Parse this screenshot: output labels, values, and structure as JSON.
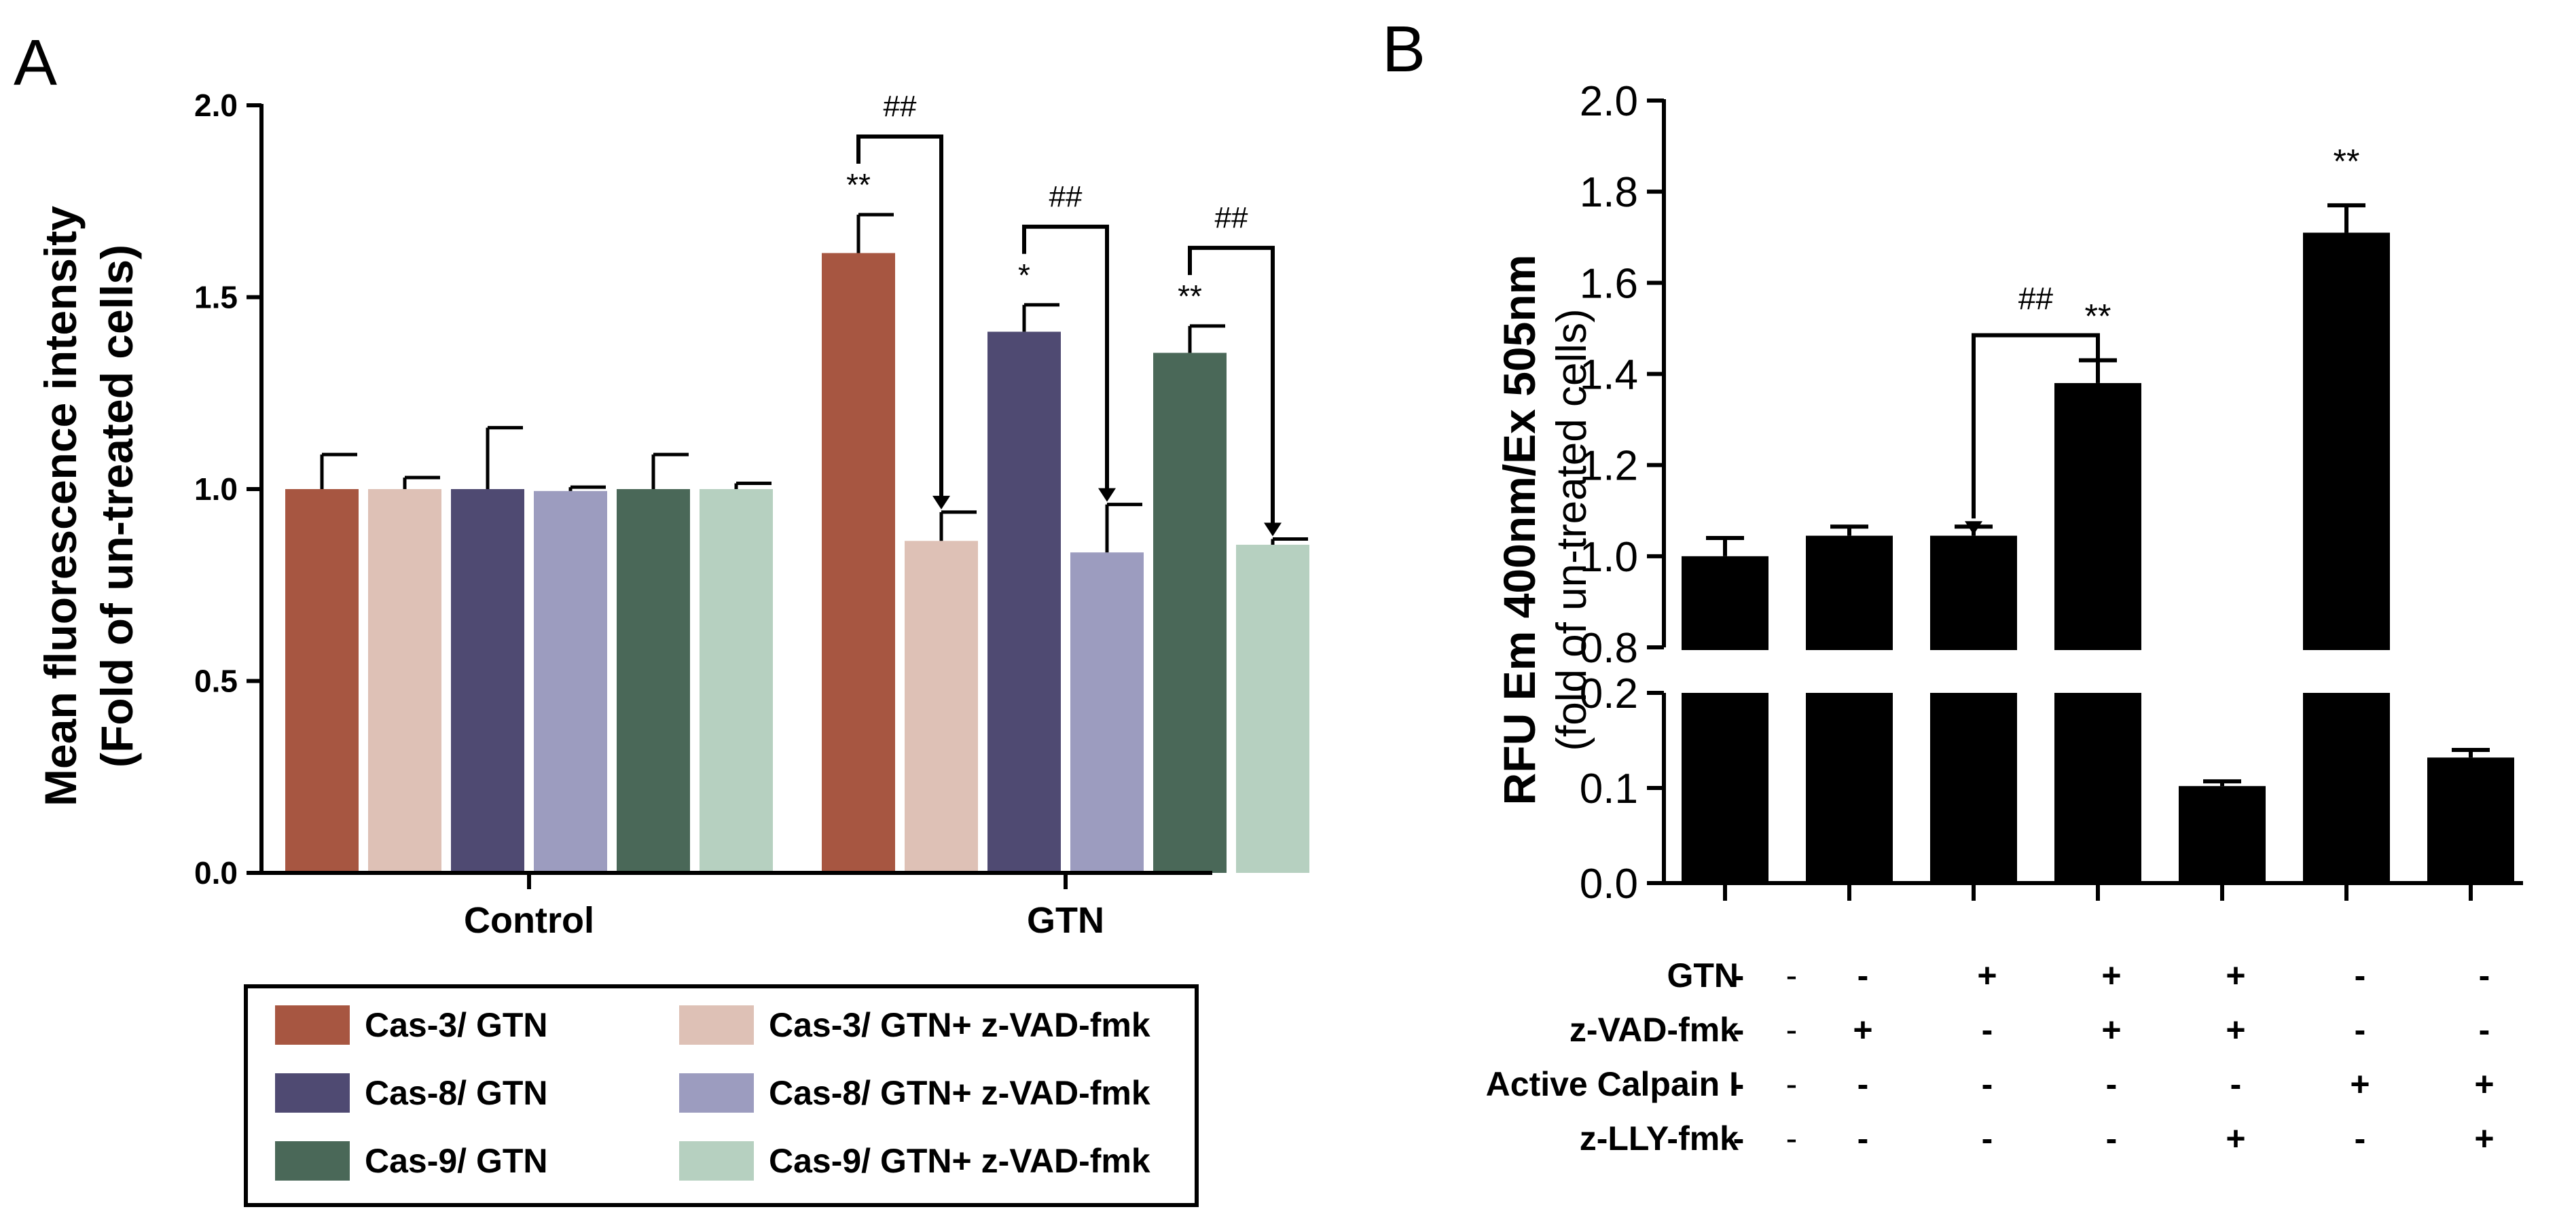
{
  "chart_data": [
    {
      "panel_label": "A",
      "type": "bar",
      "ylabel_line1": "Mean fluorescence intensity",
      "ylabel_line2": "(Fold of un-treated cells)",
      "ylim": [
        0,
        2.0
      ],
      "yticks": [
        0.0,
        0.5,
        1.0,
        1.5,
        2.0
      ],
      "ytick_labels": [
        "0.0",
        "0.5",
        "1.0",
        "1.5",
        "2.0"
      ],
      "groups": [
        "Control",
        "GTN"
      ],
      "series": [
        {
          "name": "Cas-3/ GTN",
          "color": "#a75641",
          "values": [
            1.0,
            1.615
          ],
          "errors": [
            0.09,
            0.1
          ]
        },
        {
          "name": "Cas-3/ GTN+ z-VAD-fmk",
          "color": "#dec1b6",
          "values": [
            1.0,
            0.865
          ],
          "errors": [
            0.03,
            0.075
          ]
        },
        {
          "name": "Cas-8/ GTN",
          "color": "#4f4a72",
          "values": [
            1.0,
            1.41
          ],
          "errors": [
            0.16,
            0.07
          ]
        },
        {
          "name": "Cas-8/ GTN+ z-VAD-fmk",
          "color": "#9c9cbf",
          "values": [
            0.995,
            0.835
          ],
          "errors": [
            0.01,
            0.125
          ]
        },
        {
          "name": "Cas-9/ GTN",
          "color": "#4a6858",
          "values": [
            1.0,
            1.355
          ],
          "errors": [
            0.09,
            0.07
          ]
        },
        {
          "name": "Cas-9/ GTN+ z-VAD-fmk",
          "color": "#b6d0c0",
          "values": [
            1.0,
            0.855
          ],
          "errors": [
            0.015,
            0.015
          ]
        }
      ],
      "annotations": [
        {
          "text": "**",
          "series": 0,
          "group": 1
        },
        {
          "text": "*",
          "series": 2,
          "group": 1
        },
        {
          "text": "**",
          "series": 4,
          "group": 1
        }
      ],
      "brackets": [
        {
          "text": "##",
          "from_series": 0,
          "to_series": 1,
          "group": 1
        },
        {
          "text": "##",
          "from_series": 2,
          "to_series": 3,
          "group": 1
        },
        {
          "text": "##",
          "from_series": 4,
          "to_series": 5,
          "group": 1
        }
      ],
      "legend": "bottom"
    },
    {
      "panel_label": "B",
      "type": "bar",
      "ylabel_line1": "RFU Em 400nm/Ex 505nm",
      "ylabel_line2": "(fold of un-treated cells)",
      "axis_break": {
        "lower": [
          0.0,
          0.2
        ],
        "upper": [
          0.8,
          2.0
        ]
      },
      "yticks_upper": [
        0.8,
        1.0,
        1.2,
        1.4,
        1.6,
        1.8,
        2.0
      ],
      "ytick_labels_upper": [
        "0.8",
        "1.0",
        "1.2",
        "1.4",
        "1.6",
        "1.8",
        "2.0"
      ],
      "yticks_lower": [
        0.0,
        0.1,
        0.2
      ],
      "ytick_labels_lower": [
        "0.0",
        "0.1",
        "0.2"
      ],
      "bar_color": "#000000",
      "values": [
        1.0,
        1.045,
        1.045,
        1.38,
        0.102,
        1.71,
        0.132
      ],
      "errors": [
        0.04,
        0.02,
        0.02,
        0.05,
        0.005,
        0.06,
        0.008
      ],
      "annotations": [
        {
          "text": "**",
          "bar": 3
        },
        {
          "text": "**",
          "bar": 5
        }
      ],
      "brackets": [
        {
          "text": "##",
          "from_bar": 2,
          "to_bar": 3
        }
      ],
      "treatments": [
        {
          "label": "GTN",
          "signs": [
            "-",
            "-",
            "+",
            "+",
            "+",
            "-",
            "-"
          ]
        },
        {
          "label": "z-VAD-fmk",
          "signs": [
            "-",
            "+",
            "-",
            "+",
            "+",
            "-",
            "-"
          ]
        },
        {
          "label": "Active Calpain I",
          "signs": [
            "-",
            "-",
            "-",
            "-",
            "-",
            "+",
            "+"
          ]
        },
        {
          "label": "z-LLY-fmk",
          "signs": [
            "-",
            "-",
            "-",
            "-",
            "+",
            "-",
            "+"
          ]
        }
      ]
    }
  ]
}
